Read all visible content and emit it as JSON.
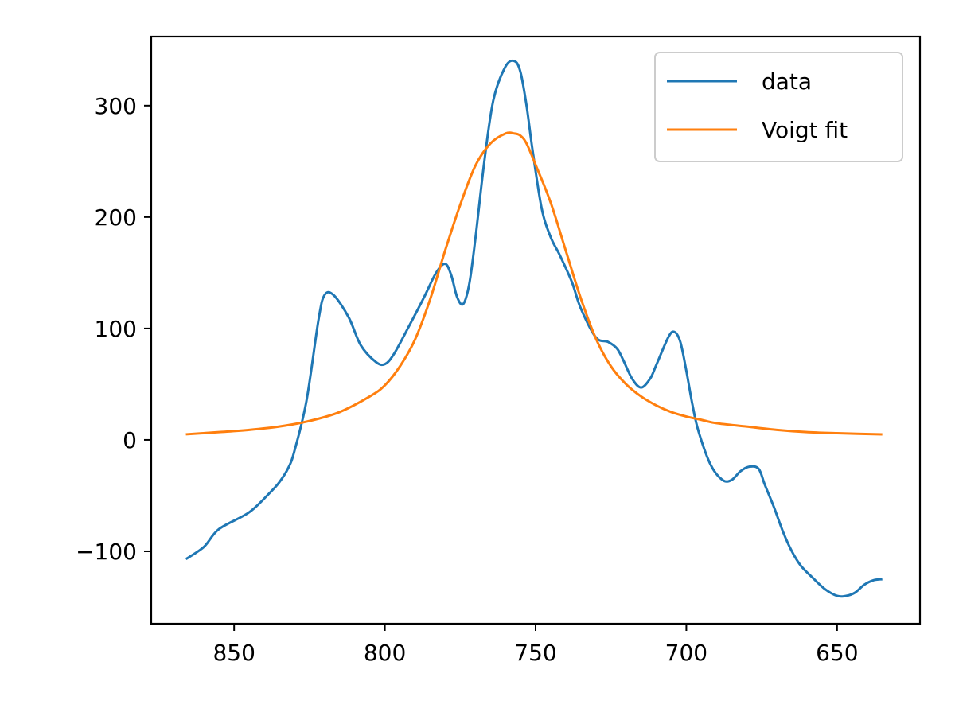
{
  "chart_data": {
    "type": "line",
    "title": "",
    "xlabel": "",
    "ylabel": "",
    "x_inverted": true,
    "xlim": [
      877.5,
      622.5
    ],
    "ylim": [
      -165,
      362
    ],
    "grid": false,
    "legend_position": "top-right",
    "x_ticks": [
      850,
      800,
      750,
      700,
      650
    ],
    "y_ticks": [
      -100,
      0,
      100,
      200,
      300
    ],
    "x_tick_labels": [
      "850",
      "800",
      "750",
      "700",
      "650"
    ],
    "y_tick_labels": [
      "−100",
      "0",
      "100",
      "200",
      "300"
    ],
    "series": [
      {
        "name": "data",
        "color": "#1f77b4",
        "x": [
          866,
          860,
          855,
          845,
          838,
          835,
          832,
          830,
          826,
          822,
          820,
          817,
          812,
          808,
          803,
          800,
          797,
          792,
          787,
          783,
          780,
          778,
          776,
          774,
          772,
          770,
          767,
          764,
          760,
          757,
          755,
          753,
          751,
          748,
          745,
          742,
          738,
          735,
          730,
          726,
          723,
          721,
          718,
          715,
          712,
          710,
          706,
          704,
          702,
          700,
          698,
          696,
          692,
          688,
          685,
          682,
          679,
          676,
          674,
          671,
          668,
          665,
          662,
          658,
          654,
          650,
          647,
          644,
          641,
          638,
          635
        ],
        "y": [
          -107,
          -96,
          -80,
          -65,
          -47,
          -38,
          -25,
          -10,
          35,
          108,
          130,
          130,
          110,
          85,
          70,
          68,
          77,
          102,
          128,
          150,
          158,
          148,
          128,
          122,
          140,
          180,
          250,
          305,
          335,
          340,
          330,
          300,
          260,
          208,
          182,
          166,
          142,
          118,
          92,
          88,
          82,
          72,
          55,
          47,
          55,
          67,
          92,
          97,
          88,
          62,
          32,
          8,
          -22,
          -36,
          -36,
          -28,
          -24,
          -26,
          -40,
          -60,
          -82,
          -100,
          -113,
          -124,
          -134,
          -140,
          -140,
          -137,
          -130,
          -126,
          -125
        ]
      },
      {
        "name": "Voigt fit",
        "color": "#ff7f0e",
        "x": [
          866,
          855,
          845,
          835,
          825,
          815,
          805,
          800,
          795,
          790,
          785,
          780,
          775,
          770,
          765,
          760,
          757,
          755,
          753,
          750,
          745,
          740,
          735,
          730,
          725,
          720,
          715,
          710,
          705,
          700,
          695,
          690,
          680,
          670,
          660,
          650,
          635
        ],
        "y": [
          5,
          7,
          9,
          12,
          17,
          25,
          39,
          49,
          66,
          90,
          126,
          170,
          211,
          246,
          266,
          275,
          275,
          273,
          266,
          247,
          213,
          170,
          127,
          91,
          66,
          50,
          39,
          31,
          25,
          21,
          18,
          15,
          12,
          9,
          7,
          6,
          5
        ]
      }
    ]
  }
}
